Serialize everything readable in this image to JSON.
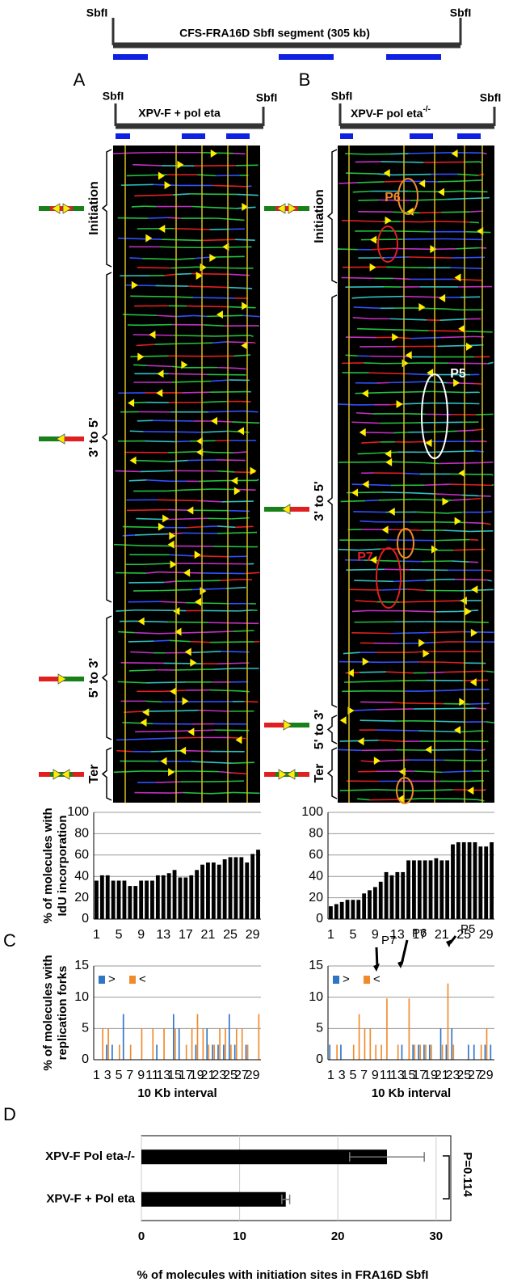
{
  "map": {
    "left": "SbfI",
    "right": "SbfI",
    "title": "CFS-FRA16D SbfI segment (305 kb)"
  },
  "panels": [
    "A",
    "B",
    "C",
    "D"
  ],
  "panel_a": {
    "left": "SbfI",
    "right": "SbfI",
    "title": "XPV-F + pol eta",
    "phases": [
      "Initiation",
      "3' to 5'",
      "5' to 3'",
      "Ter"
    ]
  },
  "panel_b": {
    "left": "SbfI",
    "right": "SbfI",
    "title": "XPV-F pol eta",
    "title_sup": "-/-",
    "phases": [
      "Initiation",
      "3' to 5'",
      "5' to 3'",
      "Ter"
    ],
    "callouts": [
      "P6",
      "P5",
      "P7"
    ]
  },
  "chart_data": [
    {
      "type": "bar",
      "ylabel": [
        "% of molecules with",
        "IdU incorporation"
      ],
      "categories": [
        1,
        null,
        null,
        null,
        5,
        null,
        null,
        null,
        9,
        null,
        null,
        null,
        13,
        null,
        null,
        null,
        17,
        null,
        null,
        null,
        21,
        null,
        null,
        null,
        25,
        null,
        null,
        null,
        29,
        null
      ],
      "values": [
        36,
        41,
        41,
        36,
        36,
        36,
        31,
        31,
        36,
        36,
        36,
        41,
        41,
        43,
        46,
        39,
        39,
        41,
        46,
        51,
        53,
        53,
        51,
        56,
        58,
        58,
        58,
        53,
        61,
        65
      ],
      "color": "#000000",
      "ylim": [
        0,
        100
      ],
      "yticks": [
        0,
        20,
        40,
        60,
        80,
        100
      ],
      "grid": true
    },
    {
      "type": "bar",
      "categories": [
        1,
        null,
        null,
        null,
        5,
        null,
        null,
        null,
        9,
        null,
        null,
        null,
        13,
        null,
        null,
        null,
        17,
        null,
        null,
        null,
        21,
        null,
        null,
        null,
        25,
        null,
        null,
        null,
        29,
        null
      ],
      "values": [
        12,
        14,
        16,
        18,
        18,
        18,
        24,
        27,
        30,
        35,
        44,
        41,
        44,
        44,
        55,
        55,
        55,
        55,
        55,
        57,
        55,
        55,
        70,
        72,
        72,
        72,
        72,
        68,
        68,
        72
      ],
      "color": "#000000",
      "ylim": [
        0,
        100
      ],
      "yticks": [
        0,
        20,
        40,
        60,
        80,
        100
      ],
      "grid": true
    },
    {
      "type": "bar",
      "ylabel": [
        "% of molecules with",
        "replication forks"
      ],
      "xlabel": "10 Kb interval",
      "categories": [
        1,
        null,
        3,
        null,
        5,
        null,
        7,
        null,
        9,
        null,
        11,
        null,
        13,
        null,
        15,
        null,
        17,
        null,
        19,
        null,
        21,
        null,
        23,
        null,
        25,
        null,
        27,
        null,
        29,
        null
      ],
      "series": [
        {
          "name": ">",
          "color": "#2e75c5",
          "values": [
            0,
            0,
            2.4,
            2.4,
            0,
            7.3,
            0,
            0,
            0,
            0,
            0,
            2.4,
            0,
            0,
            7.3,
            5,
            0,
            0,
            2.4,
            0,
            5,
            2.4,
            2.4,
            2.4,
            7.3,
            2.4,
            0,
            2.4,
            0,
            0
          ]
        },
        {
          "name": "<",
          "color": "#f08a2c",
          "values": [
            0,
            5,
            5,
            0,
            2.4,
            0,
            2.4,
            0,
            5,
            0,
            5,
            0,
            5,
            0,
            5,
            0,
            2.4,
            5,
            7.3,
            5,
            2.4,
            2.4,
            5,
            5,
            2.4,
            5,
            5,
            2.4,
            0,
            7.3
          ]
        }
      ],
      "ylim": [
        0,
        15
      ],
      "yticks": [
        0,
        5,
        10,
        15
      ],
      "grid": true
    },
    {
      "type": "bar",
      "xlabel": "10 Kb interval",
      "categories": [
        1,
        null,
        3,
        null,
        5,
        null,
        7,
        null,
        9,
        null,
        11,
        null,
        13,
        null,
        15,
        null,
        17,
        null,
        19,
        null,
        21,
        null,
        23,
        null,
        25,
        null,
        27,
        null,
        29,
        null
      ],
      "series": [
        {
          "name": ">",
          "color": "#2e75c5",
          "values": [
            2.4,
            0,
            2.4,
            0,
            0,
            0,
            0,
            0,
            0,
            0,
            0,
            0,
            0,
            2.4,
            0,
            2.4,
            2.4,
            2.4,
            2.4,
            0,
            5,
            2.4,
            5,
            0,
            0,
            2.4,
            2.4,
            0,
            2.4,
            2.4
          ]
        },
        {
          "name": "<",
          "color": "#f08a2c",
          "values": [
            0,
            2.4,
            0,
            0,
            2.4,
            7.3,
            5,
            5,
            2.4,
            2.4,
            9.8,
            0,
            2.4,
            0,
            9.8,
            2.4,
            2.4,
            2.4,
            2.4,
            0,
            2.4,
            12.2,
            2.4,
            0,
            0,
            0,
            0,
            2.4,
            5,
            0
          ]
        }
      ],
      "annotations": [
        "P7",
        "P6",
        "P5"
      ],
      "ylim": [
        0,
        15
      ],
      "yticks": [
        0,
        5,
        10,
        15
      ],
      "grid": true
    },
    {
      "type": "hbar",
      "xlabel": "% of molecules with initiation sites in FRA16D SbfI",
      "categories": [
        "XPV-F Pol eta-/-",
        "XPV-F + Pol eta"
      ],
      "values": [
        25,
        14.7
      ],
      "errors": [
        3.8,
        0.4
      ],
      "color": "#000000",
      "xlim": [
        0,
        31.5
      ],
      "xticks": [
        0,
        10,
        20,
        30
      ],
      "grid": true,
      "annotation": "P=0.114"
    }
  ]
}
